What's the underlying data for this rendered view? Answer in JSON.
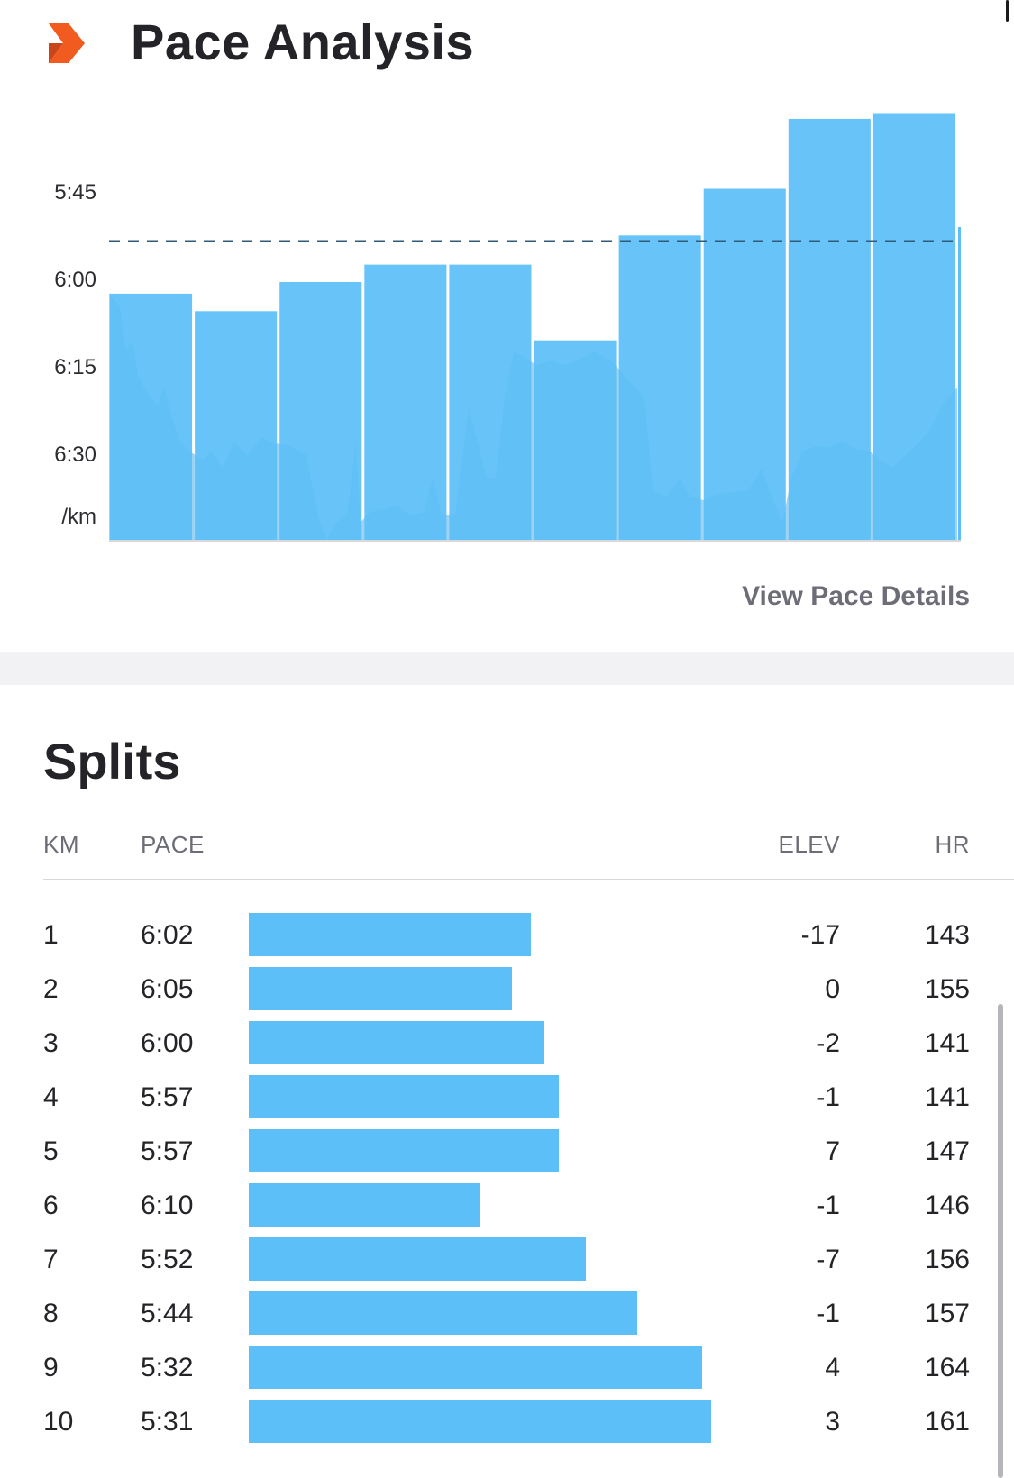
{
  "header": {
    "title": "Pace Analysis",
    "logo_color": "#f25b1f",
    "logo_icon": "chevron-right-icon"
  },
  "chart_data": {
    "type": "bar",
    "categories": [
      "1",
      "2",
      "3",
      "4",
      "5",
      "6",
      "7",
      "8",
      "9",
      "10"
    ],
    "values": [
      "6:02",
      "6:05",
      "6:00",
      "5:57",
      "5:57",
      "6:10",
      "5:52",
      "5:44",
      "5:32",
      "5:31"
    ],
    "values_seconds_per_km": [
      362,
      365,
      360,
      357,
      357,
      370,
      352,
      344,
      332,
      331
    ],
    "y_axis_inverted": true,
    "ylim": [
      "5:32",
      "6:42"
    ],
    "yticks": [
      "5:45",
      "6:00",
      "6:15",
      "6:30"
    ],
    "yunit": "/km",
    "average_line": "5:53",
    "bar_color": "#5cbff7",
    "background_area_color": "#52aee8"
  },
  "pace_link": "View Pace Details",
  "splits": {
    "title": "Splits",
    "columns": {
      "km": "KM",
      "pace": "PACE",
      "elev": "ELEV",
      "hr": "HR"
    },
    "rows": [
      {
        "km": "1",
        "pace": "6:02",
        "elev": "-17",
        "hr": "143",
        "bar_fraction": 0.61
      },
      {
        "km": "2",
        "pace": "6:05",
        "elev": "0",
        "hr": "155",
        "bar_fraction": 0.57
      },
      {
        "km": "3",
        "pace": "6:00",
        "elev": "-2",
        "hr": "141",
        "bar_fraction": 0.64
      },
      {
        "km": "4",
        "pace": "5:57",
        "elev": "-1",
        "hr": "141",
        "bar_fraction": 0.67
      },
      {
        "km": "5",
        "pace": "5:57",
        "elev": "7",
        "hr": "147",
        "bar_fraction": 0.67
      },
      {
        "km": "6",
        "pace": "6:10",
        "elev": "-1",
        "hr": "146",
        "bar_fraction": 0.5
      },
      {
        "km": "7",
        "pace": "5:52",
        "elev": "-7",
        "hr": "156",
        "bar_fraction": 0.73
      },
      {
        "km": "8",
        "pace": "5:44",
        "elev": "-1",
        "hr": "157",
        "bar_fraction": 0.84
      },
      {
        "km": "9",
        "pace": "5:32",
        "elev": "4",
        "hr": "164",
        "bar_fraction": 0.98
      },
      {
        "km": "10",
        "pace": "5:31",
        "elev": "3",
        "hr": "161",
        "bar_fraction": 1.0
      }
    ]
  }
}
